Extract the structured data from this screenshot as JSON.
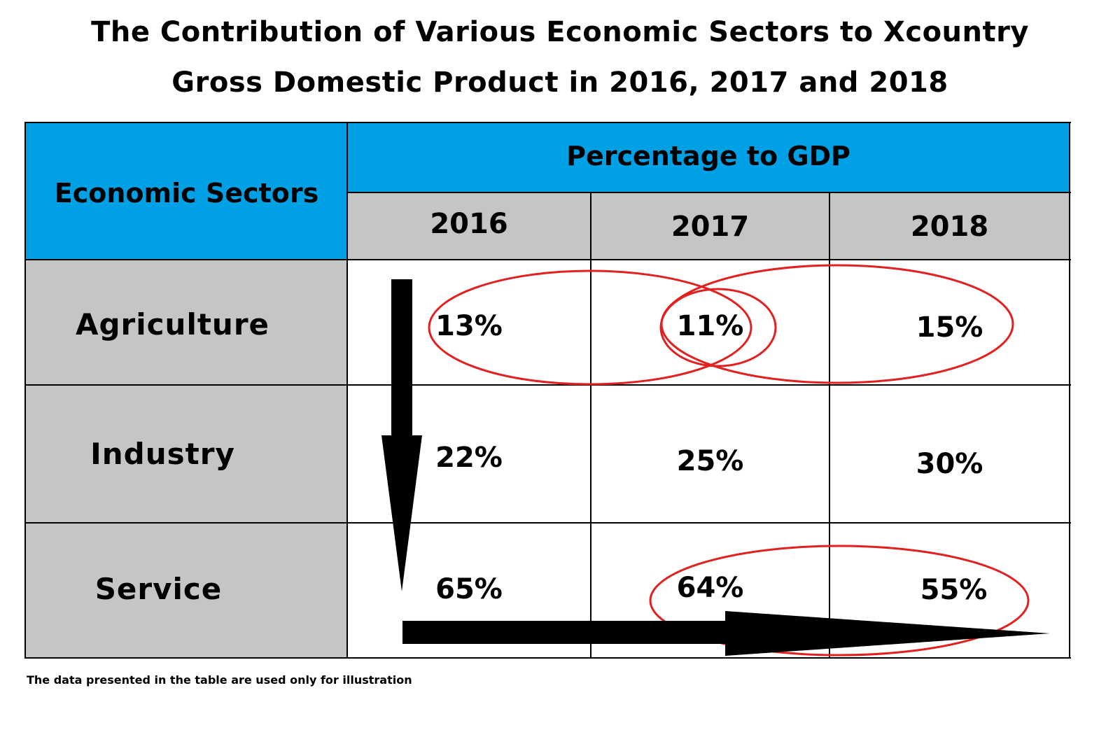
{
  "title": {
    "line1": "The Contribution of Various Economic Sectors to Xcountry",
    "line2": "Gross Domestic Product in 2016, 2017 and 2018"
  },
  "colors": {
    "header_blue": "#00a1e4",
    "header_grey": "#c5c5c5",
    "ellipse_red": "#e32020",
    "arrow": "#000000"
  },
  "chart_data": {
    "type": "table",
    "title": "The Contribution of Various Economic Sectors to Xcountry Gross Domestic Product in 2016, 2017 and 2018",
    "row_header": "Economic Sectors",
    "column_group_header": "Percentage to GDP",
    "columns": [
      "2016",
      "2017",
      "2018"
    ],
    "rows": [
      {
        "sector": "Agriculture",
        "values": [
          "13%",
          "11%",
          "15%"
        ]
      },
      {
        "sector": "Industry",
        "values": [
          "22%",
          "25%",
          "30%"
        ]
      },
      {
        "sector": "Service",
        "values": [
          "65%",
          "64%",
          "55%"
        ]
      }
    ],
    "annotations": [
      "red ellipses highlight Agriculture 2016–2017 and 2017–2018 and Service 2017–2018",
      "downward arrow along the 2016 column",
      "rightward arrow along the Service row"
    ]
  },
  "footnote": "The data presented in the table are used only for illustration"
}
